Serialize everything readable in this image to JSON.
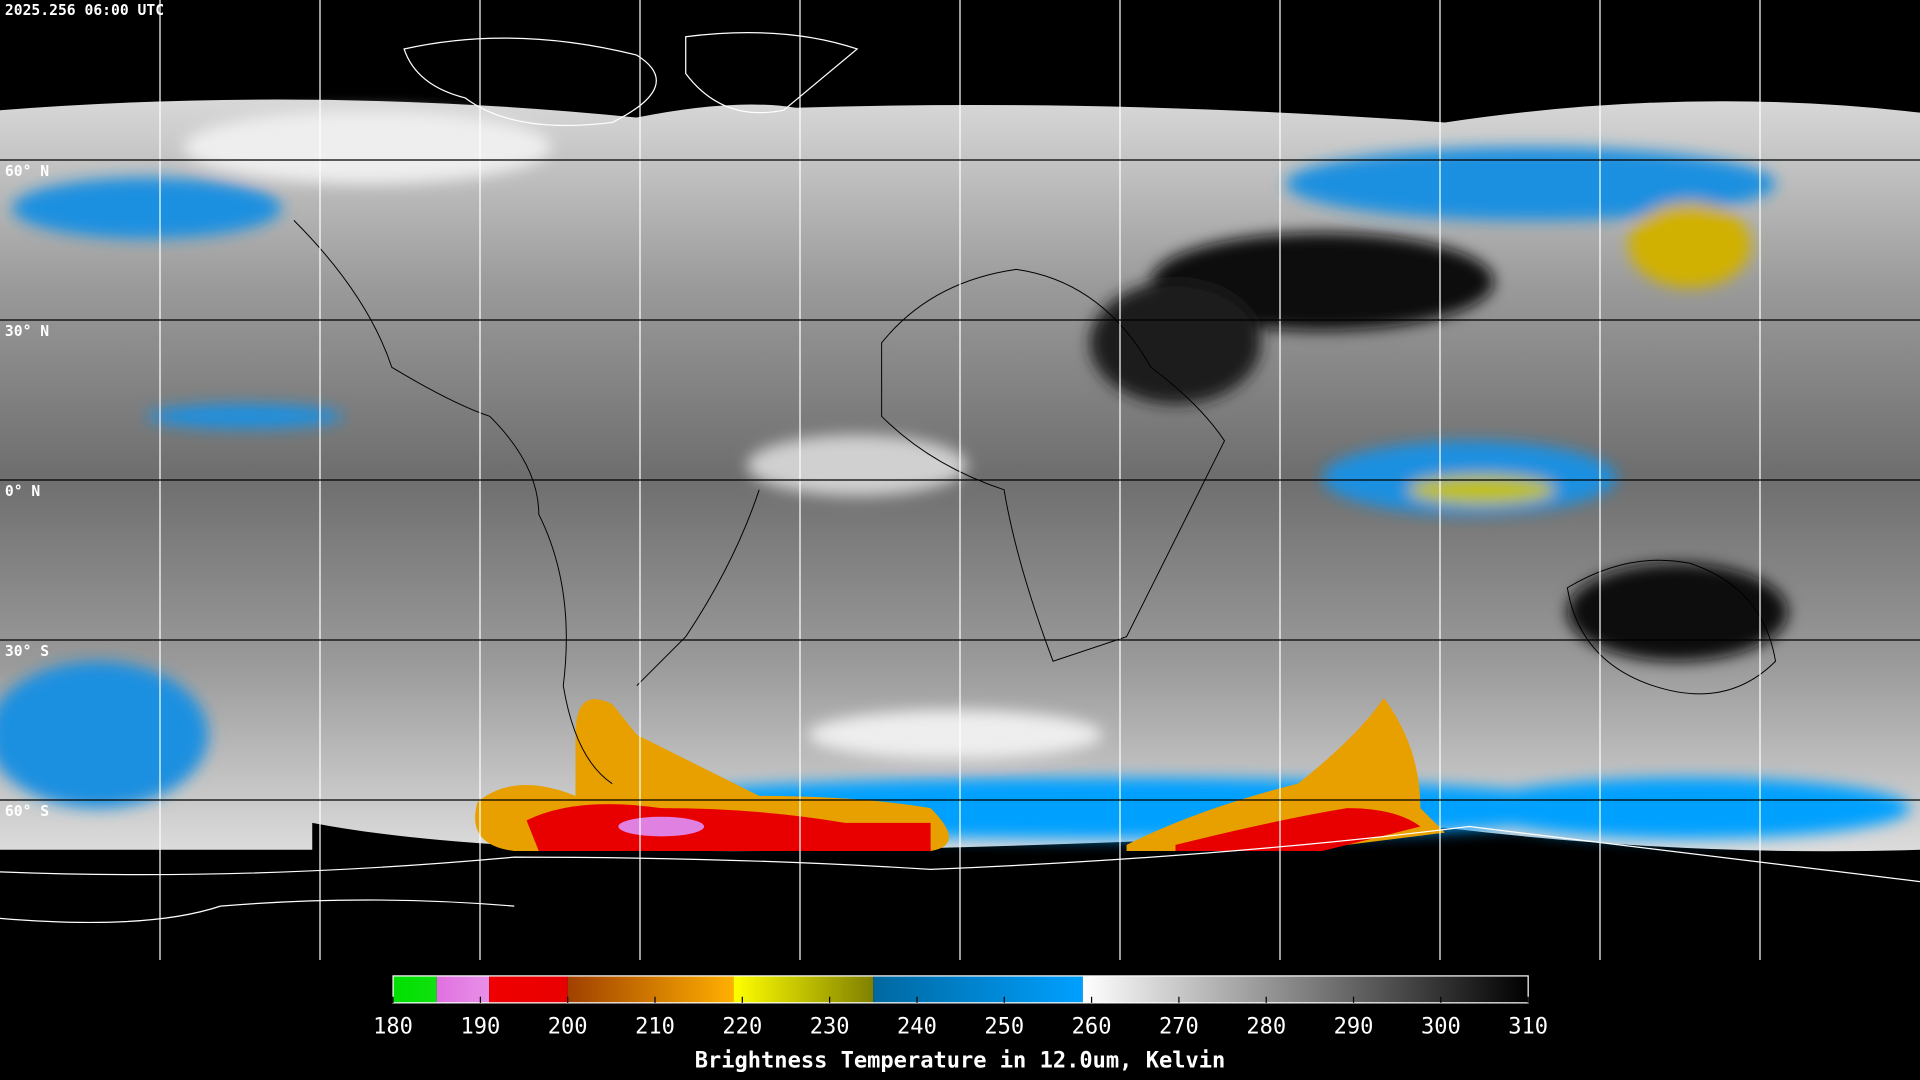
{
  "timestamp": "2025.256 06:00 UTC",
  "latitude_labels": [
    "60° N",
    "30° N",
    "0° N",
    "30° S",
    "60° S"
  ],
  "colorbar": {
    "title": "Brightness Temperature in 12.0um, Kelvin",
    "range": [
      180,
      310
    ],
    "ticks": [
      180,
      190,
      200,
      210,
      220,
      230,
      240,
      250,
      260,
      270,
      280,
      290,
      300,
      310
    ],
    "segments": [
      {
        "from": 180,
        "to": 185,
        "color_start": "#00e000",
        "color_end": "#10e010"
      },
      {
        "from": 185,
        "to": 191,
        "color_start": "#e070e0",
        "color_end": "#e890e8"
      },
      {
        "from": 191,
        "to": 200,
        "color_start": "#f00000",
        "color_end": "#e80000"
      },
      {
        "from": 200,
        "to": 219,
        "color_start": "#a04000",
        "color_end": "#ffb000"
      },
      {
        "from": 219,
        "to": 235,
        "color_start": "#ffff00",
        "color_end": "#808000"
      },
      {
        "from": 235,
        "to": 259,
        "color_start": "#0068a0",
        "color_end": "#00a0ff"
      },
      {
        "from": 259,
        "to": 310,
        "color_start": "#ffffff",
        "color_end": "#000000"
      }
    ]
  }
}
